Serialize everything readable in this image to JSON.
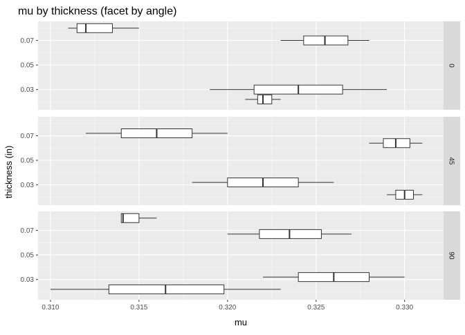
{
  "chart_data": {
    "type": "boxplot",
    "title": "mu by thickness (facet by angle)",
    "xlabel": "mu",
    "ylabel": "thickness (in)",
    "xlim": [
      0.3093,
      0.3322
    ],
    "x_ticks": [
      0.31,
      0.315,
      0.32,
      0.325,
      0.33
    ],
    "x_tick_labels": [
      "0.310",
      "0.315",
      "0.320",
      "0.325",
      "0.330"
    ],
    "y_ticks": [
      0.03,
      0.05,
      0.07
    ],
    "y_tick_labels": [
      "0.03",
      "0.05",
      "0.07"
    ],
    "ylim": [
      0.0135,
      0.0855
    ],
    "grid": true,
    "facets": [
      {
        "label": "0",
        "boxes": [
          {
            "y": 0.08,
            "min": 0.311,
            "q1": 0.3115,
            "median": 0.312,
            "q3": 0.3135,
            "max": 0.315
          },
          {
            "y": 0.07,
            "min": 0.323,
            "q1": 0.3243,
            "median": 0.3255,
            "q3": 0.3268,
            "max": 0.328
          },
          {
            "y": 0.03,
            "min": 0.319,
            "q1": 0.3215,
            "median": 0.324,
            "q3": 0.3265,
            "max": 0.329
          },
          {
            "y": 0.022,
            "min": 0.321,
            "q1": 0.3217,
            "median": 0.322,
            "q3": 0.3225,
            "max": 0.323
          }
        ]
      },
      {
        "label": "45",
        "boxes": [
          {
            "y": 0.072,
            "min": 0.312,
            "q1": 0.314,
            "median": 0.316,
            "q3": 0.318,
            "max": 0.32
          },
          {
            "y": 0.064,
            "min": 0.328,
            "q1": 0.3288,
            "median": 0.3295,
            "q3": 0.3303,
            "max": 0.331
          },
          {
            "y": 0.032,
            "min": 0.318,
            "q1": 0.32,
            "median": 0.322,
            "q3": 0.324,
            "max": 0.326
          },
          {
            "y": 0.022,
            "min": 0.329,
            "q1": 0.3295,
            "median": 0.33,
            "q3": 0.3305,
            "max": 0.331
          }
        ]
      },
      {
        "label": "90",
        "boxes": [
          {
            "y": 0.08,
            "min": 0.314,
            "q1": 0.314,
            "median": 0.3141,
            "q3": 0.315,
            "max": 0.316
          },
          {
            "y": 0.067,
            "min": 0.32,
            "q1": 0.3218,
            "median": 0.3235,
            "q3": 0.3253,
            "max": 0.327
          },
          {
            "y": 0.032,
            "min": 0.322,
            "q1": 0.324,
            "median": 0.326,
            "q3": 0.328,
            "max": 0.33
          },
          {
            "y": 0.022,
            "min": 0.31,
            "q1": 0.3133,
            "median": 0.3165,
            "q3": 0.3198,
            "max": 0.323
          }
        ]
      }
    ]
  }
}
